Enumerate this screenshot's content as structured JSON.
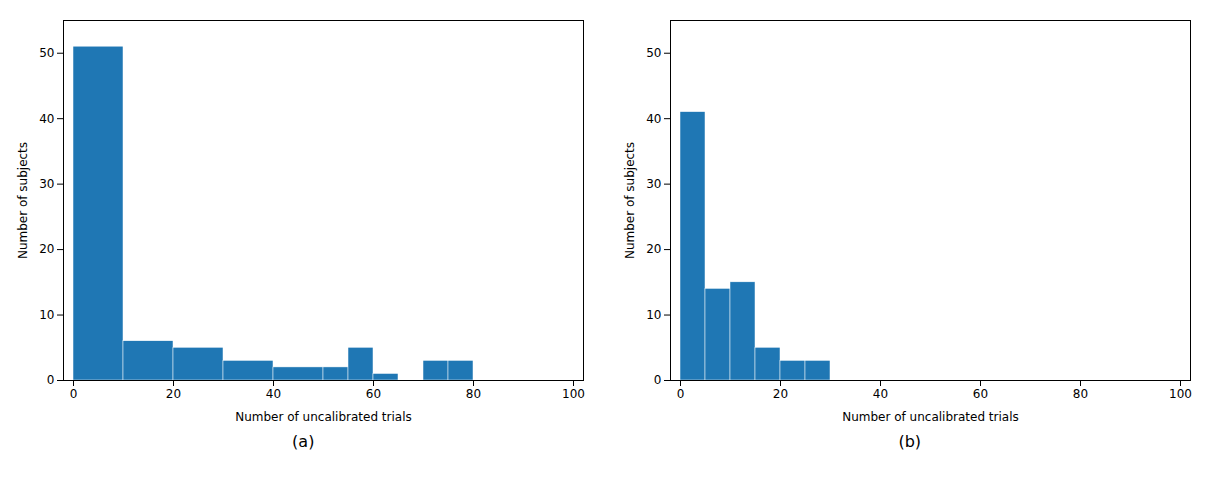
{
  "chart_data": [
    {
      "type": "histogram",
      "bins": [
        0,
        10,
        20,
        30,
        40,
        50,
        55,
        60,
        65,
        70,
        75,
        80,
        85
      ],
      "values": [
        51,
        6,
        5,
        3,
        2,
        2,
        5,
        1,
        0,
        3,
        3,
        0
      ],
      "color": "#1f77b4",
      "xlabel": "Number of uncalibrated trials",
      "ylabel": "Number of subjects",
      "xlim": [
        -2,
        102
      ],
      "ylim": [
        0,
        55
      ],
      "xticks": [
        0,
        20,
        40,
        60,
        80,
        100
      ],
      "yticks": [
        0,
        10,
        20,
        30,
        40,
        50
      ],
      "annotations": [
        "(a)"
      ]
    },
    {
      "type": "histogram",
      "bins": [
        0,
        5,
        10,
        15,
        20,
        25,
        30,
        35,
        40,
        45,
        50
      ],
      "values": [
        41,
        14,
        15,
        5,
        3,
        3,
        0,
        0,
        0,
        0
      ],
      "color": "#1f77b4",
      "xlabel": "Number of uncalibrated trials",
      "ylabel": "Number of subjects",
      "xlim": [
        -2,
        102
      ],
      "ylim": [
        0,
        55
      ],
      "xticks": [
        0,
        20,
        40,
        60,
        80,
        100
      ],
      "yticks": [
        0,
        10,
        20,
        30,
        40,
        50
      ],
      "annotations": [
        "(b)"
      ]
    }
  ]
}
